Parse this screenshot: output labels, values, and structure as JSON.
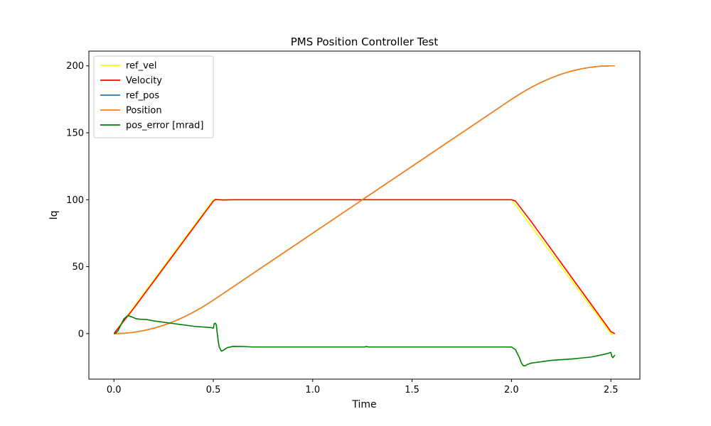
{
  "chart_data": {
    "type": "line",
    "title": "PMS Position Controller Test",
    "xlabel": "Time",
    "ylabel": "Iq",
    "xlim": [
      -0.126,
      2.646
    ],
    "ylim": [
      -34,
      211
    ],
    "xticks": [
      0.0,
      0.5,
      1.0,
      1.5,
      2.0,
      2.5
    ],
    "xtick_labels": [
      "0.0",
      "0.5",
      "1.0",
      "1.5",
      "2.0",
      "2.5"
    ],
    "yticks": [
      0,
      50,
      100,
      150,
      200
    ],
    "ytick_labels": [
      "0",
      "50",
      "100",
      "150",
      "200"
    ],
    "grid": false,
    "legend_position": "top-left",
    "series": [
      {
        "name": "ref_vel",
        "color": "#ffff00",
        "x": [
          0.0,
          0.5,
          2.0,
          2.5,
          2.52
        ],
        "y": [
          0,
          100,
          100,
          0,
          0
        ]
      },
      {
        "name": "Velocity",
        "color": "#ff0000",
        "x": [
          0.0,
          0.1,
          0.2,
          0.3,
          0.4,
          0.5,
          0.51,
          0.55,
          0.6,
          0.8,
          1.0,
          1.25,
          1.5,
          1.75,
          2.0,
          2.02,
          2.1,
          2.2,
          2.3,
          2.4,
          2.5,
          2.52
        ],
        "y": [
          0,
          19,
          39,
          59,
          79,
          99,
          100.2,
          99.8,
          100,
          100,
          100,
          100,
          100,
          100,
          100,
          99,
          83.5,
          63,
          42.5,
          22,
          1.5,
          0
        ]
      },
      {
        "name": "ref_pos",
        "color": "#1f77b4",
        "x": [
          0.0,
          0.05,
          0.1,
          0.15,
          0.2,
          0.25,
          0.3,
          0.35,
          0.4,
          0.45,
          0.5,
          0.75,
          1.0,
          1.25,
          1.5,
          1.75,
          2.0,
          2.05,
          2.1,
          2.15,
          2.2,
          2.25,
          2.3,
          2.35,
          2.4,
          2.45,
          2.5,
          2.52
        ],
        "y": [
          0,
          0.25,
          1,
          2.25,
          4,
          6.25,
          9,
          12.25,
          16,
          20.25,
          25,
          50,
          75,
          100,
          125,
          150,
          175,
          179.75,
          184,
          187.75,
          191,
          193.75,
          196,
          197.75,
          199,
          199.75,
          200,
          200
        ]
      },
      {
        "name": "Position",
        "color": "#ff7f0e",
        "x": [
          0.0,
          0.05,
          0.1,
          0.15,
          0.2,
          0.25,
          0.3,
          0.35,
          0.4,
          0.45,
          0.5,
          0.75,
          1.0,
          1.25,
          1.5,
          1.75,
          2.0,
          2.05,
          2.1,
          2.15,
          2.2,
          2.25,
          2.3,
          2.35,
          2.4,
          2.45,
          2.5,
          2.52
        ],
        "y": [
          0,
          0.25,
          1,
          2.25,
          4,
          6.25,
          9,
          12.25,
          16,
          20.25,
          25,
          50,
          75,
          100,
          125,
          150,
          175,
          179.75,
          184,
          187.75,
          191,
          193.75,
          196,
          197.75,
          199,
          199.75,
          200,
          200
        ]
      },
      {
        "name": "pos_error [mrad]",
        "color": "#008000",
        "x": [
          0.0,
          0.01,
          0.02,
          0.03,
          0.05,
          0.07,
          0.09,
          0.11,
          0.13,
          0.16,
          0.2,
          0.3,
          0.4,
          0.49,
          0.5,
          0.505,
          0.51,
          0.515,
          0.52,
          0.525,
          0.53,
          0.54,
          0.55,
          0.57,
          0.6,
          0.65,
          0.7,
          0.75,
          1.0,
          1.26,
          1.27,
          1.28,
          1.5,
          2.0,
          2.01,
          2.02,
          2.03,
          2.04,
          2.05,
          2.06,
          2.07,
          2.08,
          2.1,
          2.15,
          2.2,
          2.3,
          2.4,
          2.45,
          2.48,
          2.49,
          2.5,
          2.505,
          2.51,
          2.52
        ],
        "y": [
          0,
          0.5,
          2,
          5,
          11,
          13.5,
          12.5,
          11.2,
          10.8,
          10.6,
          9.5,
          7.5,
          5.5,
          4.5,
          4,
          7.5,
          7.8,
          6.5,
          0,
          -6,
          -10,
          -13,
          -12.5,
          -10.5,
          -9.5,
          -9.6,
          -10,
          -10,
          -10,
          -10,
          -9.6,
          -10,
          -10,
          -10,
          -11,
          -12,
          -15,
          -18,
          -22,
          -24,
          -24,
          -23,
          -22,
          -21,
          -20,
          -19,
          -17.5,
          -16,
          -15,
          -14.5,
          -14,
          -17,
          -18,
          -16
        ]
      }
    ]
  }
}
